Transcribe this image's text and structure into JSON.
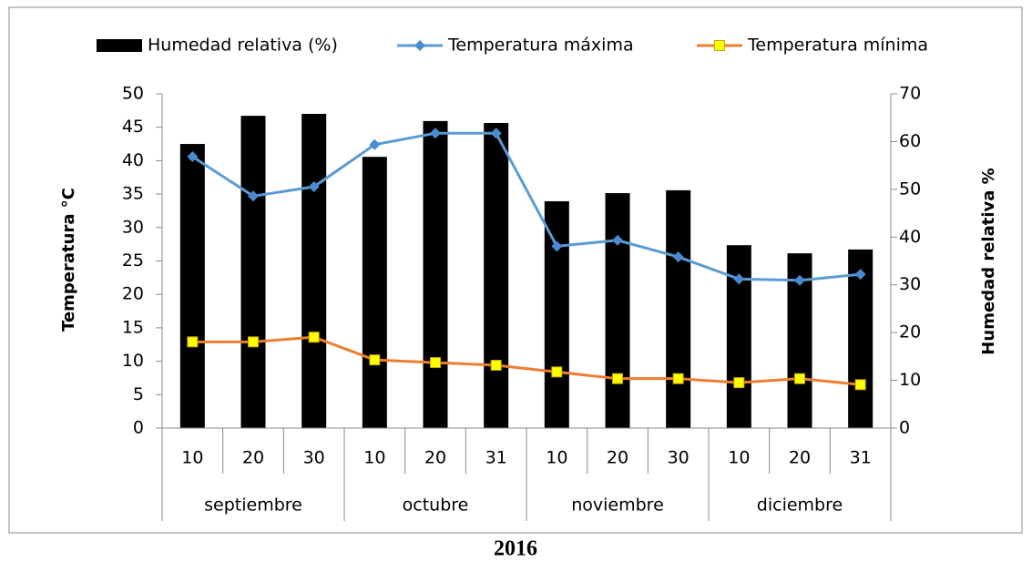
{
  "chart_data": {
    "type": "bar",
    "xlabel": "2016",
    "ylabel": "Temperatura  °C",
    "y2label": "Humedad relativa %",
    "categories": [
      "10",
      "20",
      "30",
      "10",
      "20",
      "31",
      "10",
      "20",
      "30",
      "10",
      "20",
      "31"
    ],
    "category_groups": [
      "septiembre",
      "octubre",
      "noviembre",
      "diciembre"
    ],
    "ylim": [
      0,
      50
    ],
    "yticks": [
      0,
      5,
      10,
      15,
      20,
      25,
      30,
      35,
      40,
      45,
      50
    ],
    "y2lim": [
      0,
      70
    ],
    "y2ticks": [
      0,
      10,
      20,
      30,
      40,
      50,
      60,
      70
    ],
    "legend": "top",
    "series": [
      {
        "name": "Humedad relativa (%)",
        "type": "bar",
        "axis": "y2",
        "color": "#000000",
        "values": [
          59.5,
          65.4,
          65.8,
          56.8,
          64.3,
          63.9,
          47.5,
          49.2,
          49.8,
          38.3,
          36.6,
          37.4
        ]
      },
      {
        "name": "Temperatura máxima",
        "type": "line",
        "marker": "diamond",
        "color": "#5b9bd5",
        "marker_color": "#4a8ad0",
        "values": [
          40.6,
          34.7,
          36.1,
          42.4,
          44.1,
          44.1,
          27.2,
          28.1,
          25.6,
          22.3,
          22.1,
          23.0
        ]
      },
      {
        "name": "Temperatura mínima",
        "type": "line",
        "marker": "square",
        "color": "#ed7d31",
        "marker_color": "#ffff00",
        "values": [
          12.9,
          12.9,
          13.6,
          10.2,
          9.8,
          9.4,
          8.4,
          7.4,
          7.4,
          6.8,
          7.4,
          6.5
        ]
      }
    ]
  }
}
